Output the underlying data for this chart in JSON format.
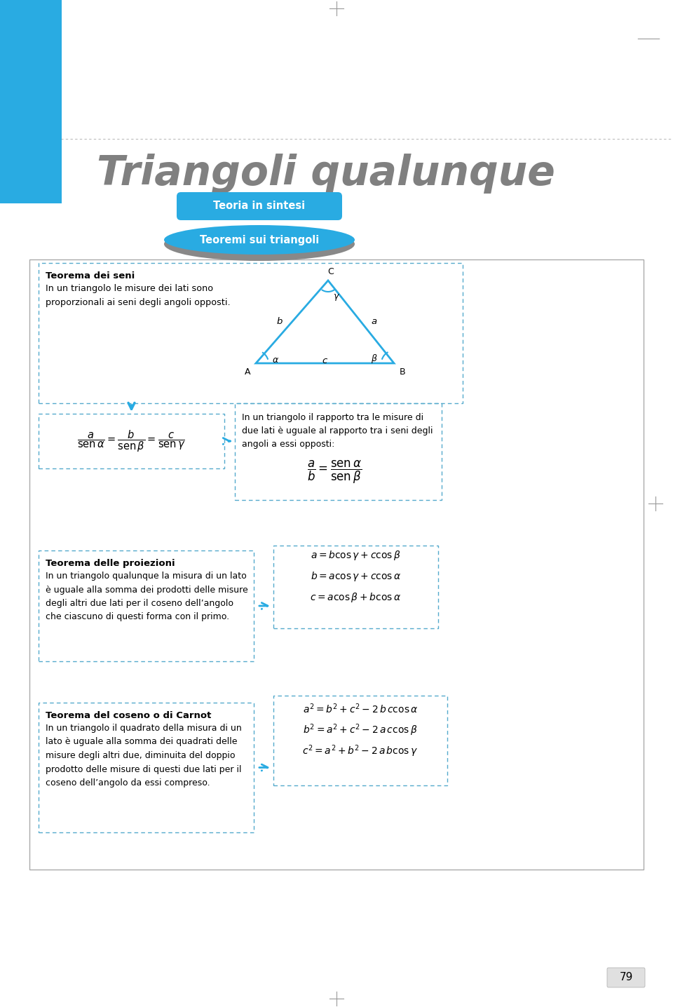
{
  "title": "Triangoli qualunque",
  "title_color": "#808080",
  "blue_color": "#29ABE2",
  "teoria_label": "Teoria in sintesi",
  "teoremi_label": "Teoremi sui triangoli",
  "teorema_seni_title": "Teorema dei seni",
  "teorema_seni_body": "In un triangolo le misure dei lati sono\nproporzionali ai seni degli angoli opposti.",
  "teorema_proiezioni_title": "Teorema delle proiezioni",
  "teorema_proiezioni_body": "In un triangolo qualunque la misura di un lato\nè uguale alla somma dei prodotti delle misure\ndegli altri due lati per il coseno dell’angolo\nche ciascuno di questi forma con il primo.",
  "teorema_coseno_title": "Teorema del coseno o di Carnot",
  "teorema_coseno_body": "In un triangolo il quadrato della misura di un\nlato è uguale alla somma dei quadrati delle\nmisure degli altri due, diminuita del doppio\nprodotto delle misure di questi due lati per il\ncoseno dell’angolo da essi compreso.",
  "seni_desc": "In un triangolo il rapporto tra le misure di\ndue lati è uguale al rapporto tra i seni degli\nangoli a essi opposti:",
  "page_num": "79",
  "bg_color": "#FFFFFF",
  "box_border_color": "#55AACC",
  "arrow_color": "#29ABE2",
  "grey_oval_color": "#888888",
  "page_border_color": "#AAAAAA"
}
